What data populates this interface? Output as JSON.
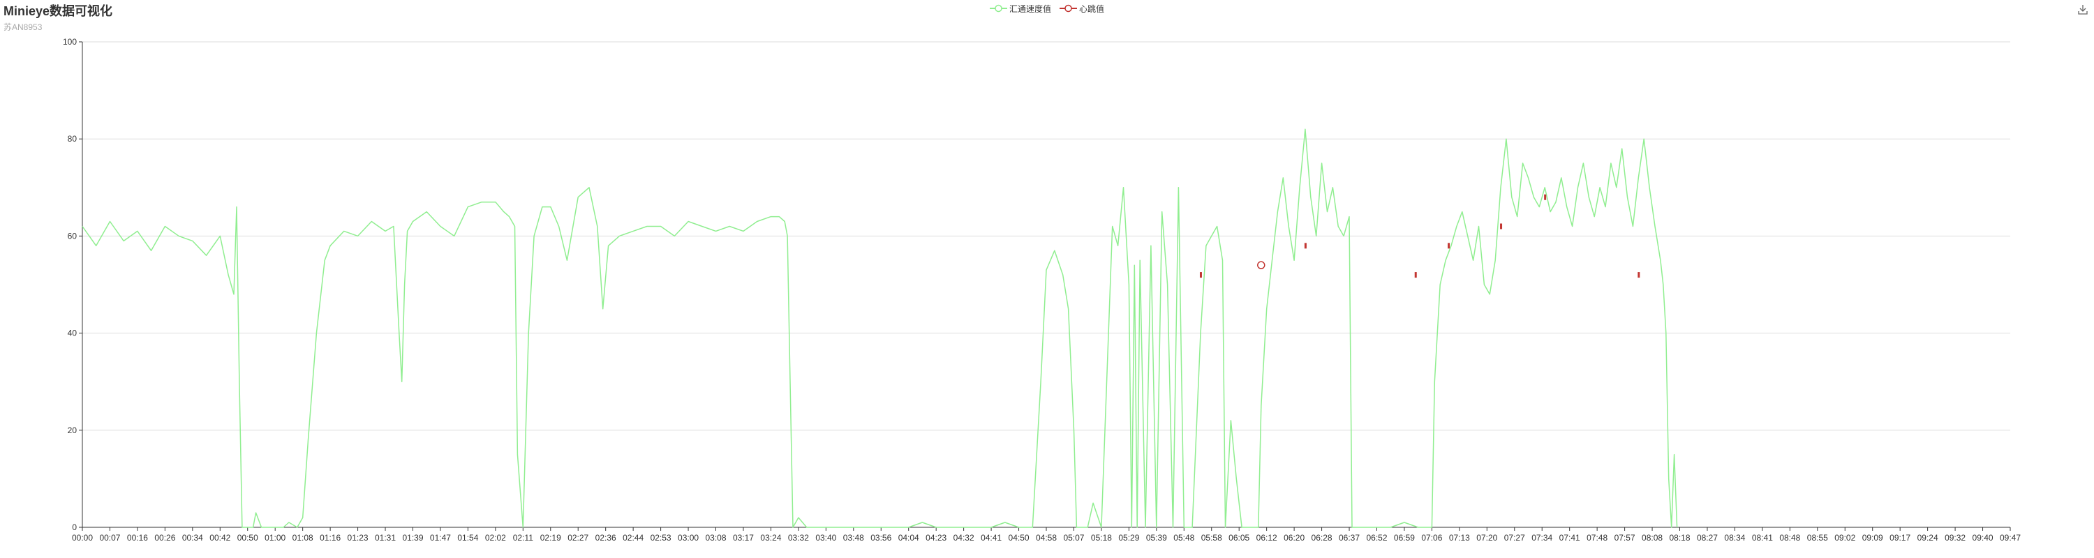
{
  "title": "Minieye数据可视化",
  "subtitle": "苏AN8953",
  "toolbox": {
    "save_icon": "download-icon"
  },
  "chart_data": {
    "type": "line",
    "ylim": [
      0,
      100
    ],
    "y_ticks": [
      0,
      20,
      40,
      60,
      80,
      100
    ],
    "grid": true,
    "legend_position": "top-center",
    "x_tick_labels": [
      "00:00",
      "00:07",
      "00:16",
      "00:26",
      "00:34",
      "00:42",
      "00:50",
      "01:00",
      "01:08",
      "01:16",
      "01:23",
      "01:31",
      "01:39",
      "01:47",
      "01:54",
      "02:02",
      "02:11",
      "02:19",
      "02:27",
      "02:36",
      "02:44",
      "02:53",
      "03:00",
      "03:08",
      "03:17",
      "03:24",
      "03:32",
      "03:40",
      "03:48",
      "03:56",
      "04:04",
      "04:23",
      "04:32",
      "04:41",
      "04:50",
      "04:58",
      "05:07",
      "05:18",
      "05:29",
      "05:39",
      "05:48",
      "05:58",
      "06:05",
      "06:12",
      "06:20",
      "06:28",
      "06:37",
      "06:52",
      "06:59",
      "07:06",
      "07:13",
      "07:20",
      "07:27",
      "07:34",
      "07:41",
      "07:48",
      "07:57",
      "08:08",
      "08:18",
      "08:27",
      "08:34",
      "08:41",
      "08:48",
      "08:55",
      "09:02",
      "09:09",
      "09:17",
      "09:24",
      "09:32",
      "09:40",
      "09:47"
    ],
    "series": [
      {
        "name": "汇通速度值",
        "color": "#90ee90",
        "values": [
          [
            0,
            62
          ],
          [
            0.5,
            58
          ],
          [
            1,
            63
          ],
          [
            1.5,
            59
          ],
          [
            2,
            61
          ],
          [
            2.5,
            57
          ],
          [
            3,
            62
          ],
          [
            3.5,
            60
          ],
          [
            4,
            59
          ],
          [
            4.5,
            56
          ],
          [
            5,
            60
          ],
          [
            5.3,
            52
          ],
          [
            5.5,
            48
          ],
          [
            5.6,
            66
          ],
          [
            5.7,
            30
          ],
          [
            5.8,
            0
          ],
          [
            6.2,
            0
          ],
          [
            6.3,
            3
          ],
          [
            6.5,
            0
          ],
          [
            7.3,
            0
          ],
          [
            7.5,
            1
          ],
          [
            7.8,
            0
          ],
          [
            8,
            2
          ],
          [
            8.2,
            18
          ],
          [
            8.5,
            40
          ],
          [
            8.8,
            55
          ],
          [
            9,
            58
          ],
          [
            9.5,
            61
          ],
          [
            10,
            60
          ],
          [
            10.5,
            63
          ],
          [
            11,
            61
          ],
          [
            11.3,
            62
          ],
          [
            11.5,
            40
          ],
          [
            11.6,
            30
          ],
          [
            11.7,
            50
          ],
          [
            11.8,
            61
          ],
          [
            12,
            63
          ],
          [
            12.5,
            65
          ],
          [
            13,
            62
          ],
          [
            13.5,
            60
          ],
          [
            14,
            66
          ],
          [
            14.5,
            67
          ],
          [
            15,
            67
          ],
          [
            15.3,
            65
          ],
          [
            15.5,
            64
          ],
          [
            15.7,
            62
          ],
          [
            15.8,
            15
          ],
          [
            16,
            0
          ],
          [
            16.2,
            40
          ],
          [
            16.4,
            60
          ],
          [
            16.7,
            66
          ],
          [
            17,
            66
          ],
          [
            17.3,
            62
          ],
          [
            17.6,
            55
          ],
          [
            18,
            68
          ],
          [
            18.4,
            70
          ],
          [
            18.7,
            62
          ],
          [
            18.9,
            45
          ],
          [
            19.1,
            58
          ],
          [
            19.5,
            60
          ],
          [
            20,
            61
          ],
          [
            20.5,
            62
          ],
          [
            21,
            62
          ],
          [
            21.5,
            60
          ],
          [
            22,
            63
          ],
          [
            22.5,
            62
          ],
          [
            23,
            61
          ],
          [
            23.5,
            62
          ],
          [
            24,
            61
          ],
          [
            24.5,
            63
          ],
          [
            25,
            64
          ],
          [
            25.3,
            64
          ],
          [
            25.5,
            63
          ],
          [
            25.6,
            60
          ],
          [
            25.7,
            30
          ],
          [
            25.8,
            0
          ],
          [
            26,
            2
          ],
          [
            26.3,
            0
          ],
          [
            30,
            0
          ],
          [
            30.5,
            1
          ],
          [
            31,
            0
          ],
          [
            33,
            0
          ],
          [
            33.5,
            1
          ],
          [
            34,
            0
          ],
          [
            34.5,
            0
          ],
          [
            34.8,
            30
          ],
          [
            35,
            53
          ],
          [
            35.3,
            57
          ],
          [
            35.6,
            52
          ],
          [
            35.8,
            45
          ],
          [
            36,
            20
          ],
          [
            36.1,
            0
          ],
          [
            36.5,
            0
          ],
          [
            36.7,
            5
          ],
          [
            37,
            0
          ],
          [
            37.4,
            62
          ],
          [
            37.6,
            58
          ],
          [
            37.8,
            70
          ],
          [
            38,
            50
          ],
          [
            38.1,
            0
          ],
          [
            38.2,
            54
          ],
          [
            38.3,
            0
          ],
          [
            38.4,
            55
          ],
          [
            38.6,
            0
          ],
          [
            38.8,
            58
          ],
          [
            39,
            0
          ],
          [
            39.2,
            65
          ],
          [
            39.4,
            50
          ],
          [
            39.6,
            0
          ],
          [
            39.8,
            70
          ],
          [
            40,
            0
          ],
          [
            40.3,
            0
          ],
          [
            40.6,
            40
          ],
          [
            40.8,
            58
          ],
          [
            41,
            60
          ],
          [
            41.2,
            62
          ],
          [
            41.4,
            55
          ],
          [
            41.5,
            0
          ],
          [
            41.7,
            22
          ],
          [
            41.9,
            10
          ],
          [
            42.1,
            0
          ],
          [
            42.5,
            0
          ],
          [
            42.7,
            0
          ],
          [
            42.8,
            25
          ],
          [
            43,
            45
          ],
          [
            43.2,
            55
          ],
          [
            43.4,
            65
          ],
          [
            43.6,
            72
          ],
          [
            43.8,
            62
          ],
          [
            44,
            55
          ],
          [
            44.2,
            70
          ],
          [
            44.4,
            82
          ],
          [
            44.6,
            68
          ],
          [
            44.8,
            60
          ],
          [
            45,
            75
          ],
          [
            45.2,
            65
          ],
          [
            45.4,
            70
          ],
          [
            45.6,
            62
          ],
          [
            45.8,
            60
          ],
          [
            46,
            64
          ],
          [
            46.1,
            0
          ],
          [
            46.5,
            0
          ],
          [
            47,
            0
          ],
          [
            47.5,
            0
          ],
          [
            48,
            1
          ],
          [
            48.5,
            0
          ],
          [
            49,
            0
          ],
          [
            49.1,
            30
          ],
          [
            49.3,
            50
          ],
          [
            49.5,
            55
          ],
          [
            49.7,
            58
          ],
          [
            49.9,
            62
          ],
          [
            50.1,
            65
          ],
          [
            50.3,
            60
          ],
          [
            50.5,
            55
          ],
          [
            50.7,
            62
          ],
          [
            50.9,
            50
          ],
          [
            51.1,
            48
          ],
          [
            51.3,
            55
          ],
          [
            51.5,
            70
          ],
          [
            51.7,
            80
          ],
          [
            51.9,
            68
          ],
          [
            52.1,
            64
          ],
          [
            52.3,
            75
          ],
          [
            52.5,
            72
          ],
          [
            52.7,
            68
          ],
          [
            52.9,
            66
          ],
          [
            53.1,
            70
          ],
          [
            53.3,
            65
          ],
          [
            53.5,
            67
          ],
          [
            53.7,
            72
          ],
          [
            53.9,
            66
          ],
          [
            54.1,
            62
          ],
          [
            54.3,
            70
          ],
          [
            54.5,
            75
          ],
          [
            54.7,
            68
          ],
          [
            54.9,
            64
          ],
          [
            55.1,
            70
          ],
          [
            55.3,
            66
          ],
          [
            55.5,
            75
          ],
          [
            55.7,
            70
          ],
          [
            55.9,
            78
          ],
          [
            56.1,
            68
          ],
          [
            56.3,
            62
          ],
          [
            56.5,
            72
          ],
          [
            56.7,
            80
          ],
          [
            56.9,
            70
          ],
          [
            57.1,
            62
          ],
          [
            57.3,
            55
          ],
          [
            57.4,
            50
          ],
          [
            57.5,
            40
          ],
          [
            57.6,
            10
          ],
          [
            57.7,
            0
          ],
          [
            57.8,
            15
          ],
          [
            57.9,
            0
          ]
        ]
      },
      {
        "name": "心跳值",
        "color": "#c23531",
        "values": [
          [
            40.6,
            52
          ],
          [
            42.8,
            54
          ],
          [
            44.4,
            58
          ],
          [
            48.4,
            52
          ],
          [
            49.6,
            58
          ],
          [
            51.5,
            62
          ],
          [
            53.1,
            68
          ],
          [
            56.5,
            52
          ]
        ]
      }
    ]
  }
}
